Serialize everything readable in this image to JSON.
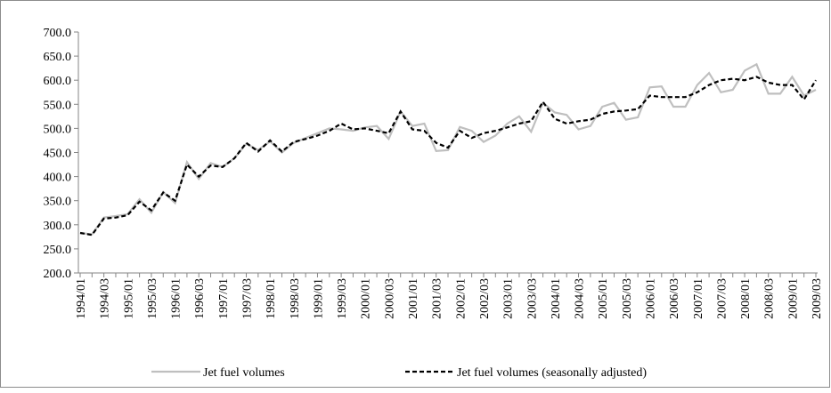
{
  "chart_data": {
    "type": "line",
    "categories": [
      "1994/01",
      null,
      "1994/03",
      null,
      "1995/01",
      null,
      "1995/03",
      null,
      "1996/01",
      null,
      "1996/03",
      null,
      "1997/01",
      null,
      "1997/03",
      null,
      "1998/01",
      null,
      "1998/03",
      null,
      "1999/01",
      null,
      "1999/03",
      null,
      "2000/01",
      null,
      "2000/03",
      null,
      "2001/01",
      null,
      "2001/03",
      null,
      "2002/01",
      null,
      "2002/03",
      null,
      "2003/01",
      null,
      "2003/03",
      null,
      "2004/01",
      null,
      "2004/03",
      null,
      "2005/01",
      null,
      "2005/03",
      null,
      "2006/01",
      null,
      "2006/03",
      null,
      "2007/01",
      null,
      "2007/03",
      null,
      "2008/01",
      null,
      "2008/03",
      null,
      "2009/01",
      null,
      "2009/03"
    ],
    "series": [
      {
        "name": "Jet fuel volumes",
        "color": "#bfbfbf",
        "dash": false,
        "values": [
          283,
          280,
          315,
          318,
          322,
          353,
          325,
          368,
          345,
          430,
          395,
          428,
          420,
          438,
          468,
          455,
          473,
          450,
          470,
          480,
          490,
          500,
          498,
          495,
          502,
          505,
          478,
          535,
          505,
          510,
          453,
          455,
          503,
          495,
          472,
          485,
          510,
          525,
          493,
          553,
          533,
          528,
          498,
          505,
          545,
          553,
          518,
          523,
          585,
          587,
          545,
          545,
          590,
          615,
          575,
          580,
          620,
          633,
          572,
          572,
          607,
          568,
          580
        ]
      },
      {
        "name": "Jet fuel volumes (seasonally adjusted)",
        "color": "#000000",
        "dash": true,
        "values": [
          283,
          279,
          313,
          315,
          320,
          348,
          330,
          367,
          350,
          425,
          400,
          423,
          420,
          438,
          470,
          452,
          475,
          452,
          472,
          478,
          485,
          495,
          510,
          498,
          500,
          495,
          490,
          535,
          498,
          495,
          470,
          460,
          495,
          480,
          490,
          495,
          502,
          510,
          515,
          555,
          520,
          510,
          515,
          518,
          530,
          535,
          537,
          540,
          568,
          565,
          565,
          565,
          575,
          590,
          600,
          603,
          600,
          607,
          595,
          590,
          590,
          560,
          600
        ]
      }
    ],
    "ylim": [
      200,
      700
    ],
    "yticks": [
      {
        "value": 200,
        "label": "200.0"
      },
      {
        "value": 250,
        "label": "250.0"
      },
      {
        "value": 300,
        "label": "300.0"
      },
      {
        "value": 350,
        "label": "350.0"
      },
      {
        "value": 400,
        "label": "400.0"
      },
      {
        "value": 450,
        "label": "450.0"
      },
      {
        "value": 500,
        "label": "500.0"
      },
      {
        "value": 550,
        "label": "550.0"
      },
      {
        "value": 600,
        "label": "600.0"
      },
      {
        "value": 650,
        "label": "650.0"
      },
      {
        "value": 700,
        "label": "700.0"
      }
    ],
    "grid": false,
    "legend": "bottom"
  }
}
